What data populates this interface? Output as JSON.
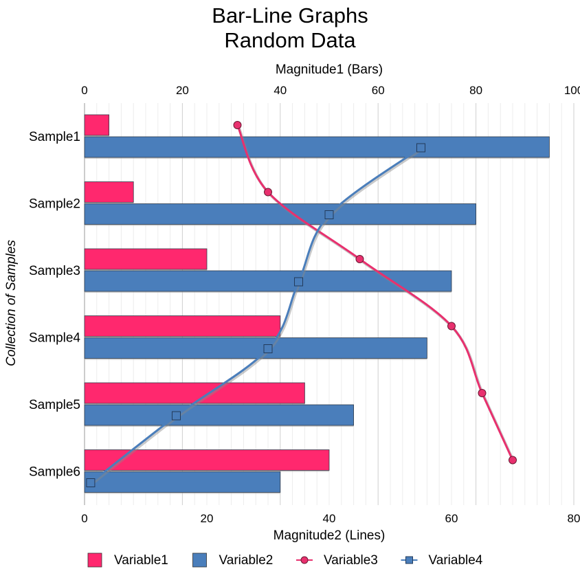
{
  "chart_data": {
    "type": "bar",
    "orientation": "horizontal",
    "title": "Bar-Line Graphs",
    "subtitle": "Random Data",
    "categories": [
      "Sample1",
      "Sample2",
      "Sample3",
      "Sample4",
      "Sample5",
      "Sample6"
    ],
    "category_axis_label": "Collection of Samples",
    "bar_axis": {
      "label": "Magnitude1 (Bars)",
      "position": "top",
      "range": [
        0,
        100
      ],
      "ticks": [
        "0",
        "20",
        "40",
        "60",
        "80",
        "100"
      ]
    },
    "line_axis": {
      "label": "Magnitude2 (Lines)",
      "position": "bottom",
      "range": [
        0,
        80
      ],
      "ticks": [
        "0",
        "20",
        "40",
        "60",
        "80"
      ]
    },
    "grid": true,
    "legend_position": "bottom",
    "series": [
      {
        "name": "Variable1",
        "kind": "bar",
        "axis": "bars",
        "color": "#FF286E",
        "values": [
          5,
          10,
          25,
          40,
          45,
          50
        ]
      },
      {
        "name": "Variable2",
        "kind": "bar",
        "axis": "bars",
        "color": "#4A7EBB",
        "values": [
          95,
          80,
          75,
          70,
          55,
          40
        ]
      },
      {
        "name": "Variable3",
        "kind": "line",
        "axis": "lines",
        "marker": "circle",
        "smooth": true,
        "color": "#E8306E",
        "values": [
          25,
          30,
          45,
          60,
          65,
          70
        ]
      },
      {
        "name": "Variable4",
        "kind": "line",
        "axis": "lines",
        "marker": "square",
        "smooth": true,
        "color": "#4A7EBB",
        "values": [
          55,
          40,
          35,
          30,
          15,
          1
        ]
      }
    ]
  }
}
